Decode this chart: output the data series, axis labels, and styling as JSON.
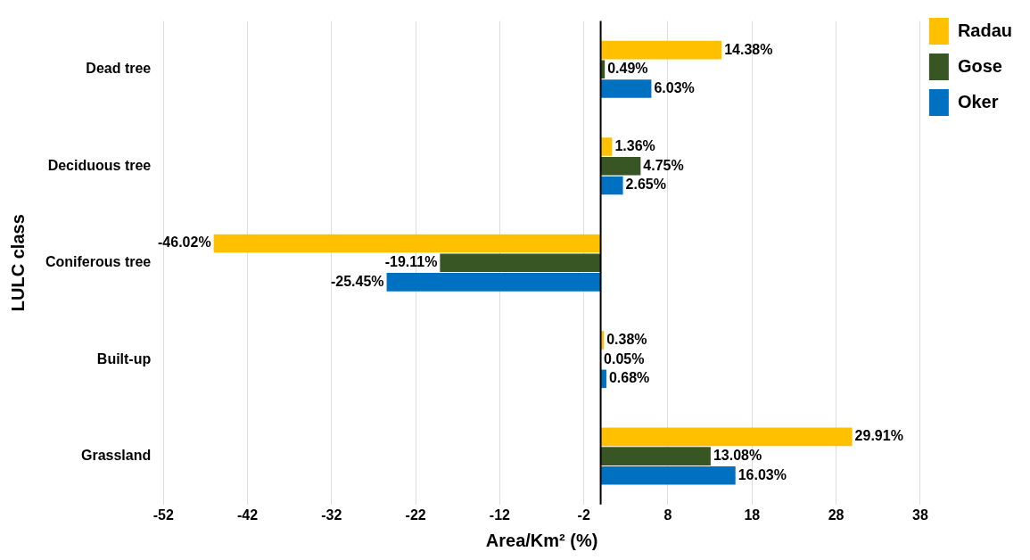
{
  "chart_data": {
    "type": "bar",
    "orientation": "horizontal",
    "xlabel": "Area/Km² (%)",
    "ylabel": "LULC class",
    "categories": [
      "Dead tree",
      "Deciduous tree",
      "Coniferous tree",
      "Built-up",
      "Grassland"
    ],
    "series": [
      {
        "name": "Radau",
        "color": "#ffc000",
        "values": [
          14.38,
          1.36,
          -46.02,
          0.38,
          29.91
        ],
        "value_labels": [
          "14.38%",
          "1.36%",
          "-46.02%",
          "0.38%",
          "29.91%"
        ]
      },
      {
        "name": "Gose",
        "color": "#375623",
        "values": [
          0.49,
          4.75,
          -19.11,
          0.05,
          13.08
        ],
        "value_labels": [
          "0.49%",
          "4.75%",
          "-19.11%",
          "0.05%",
          "13.08%"
        ]
      },
      {
        "name": "Oker",
        "color": "#0070c0",
        "values": [
          6.03,
          2.65,
          -25.45,
          0.68,
          16.03
        ],
        "value_labels": [
          "6.03%",
          "2.65%",
          "-25.45%",
          "0.68%",
          "16.03%"
        ]
      }
    ],
    "xlim": [
      -52,
      38
    ],
    "xticks": [
      -52,
      -42,
      -32,
      -22,
      -12,
      -2,
      8,
      18,
      28,
      38
    ],
    "grid": "x",
    "legend": "top right"
  }
}
